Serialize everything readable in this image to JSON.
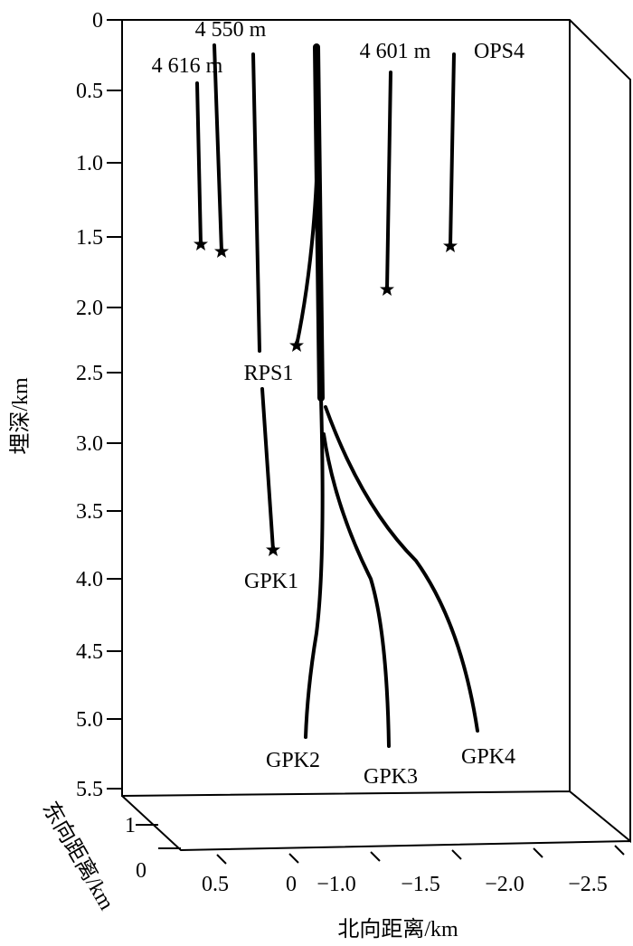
{
  "depth_axis": {
    "title": "埋深/km",
    "ticks": [
      "0",
      "0.5",
      "1.0",
      "1.5",
      "2.0",
      "2.5",
      "3.0",
      "3.5",
      "4.0",
      "4.5",
      "5.0",
      "5.5"
    ]
  },
  "east_axis": {
    "title": "东向距离/km",
    "ticks": [
      "1",
      "0"
    ]
  },
  "north_axis": {
    "title": "北向距离/km",
    "ticks": [
      "0.5",
      "0",
      "−1.0",
      "−1.5",
      "−2.0",
      "−2.5"
    ]
  },
  "wells": [
    {
      "label": "4 550 m"
    },
    {
      "label": "4 616 m"
    },
    {
      "label": "4 601 m"
    },
    {
      "label": "OPS4"
    },
    {
      "label": "RPS1"
    },
    {
      "label": "GPK1"
    },
    {
      "label": "GPK2"
    },
    {
      "label": "GPK3"
    },
    {
      "label": "GPK4"
    }
  ]
}
